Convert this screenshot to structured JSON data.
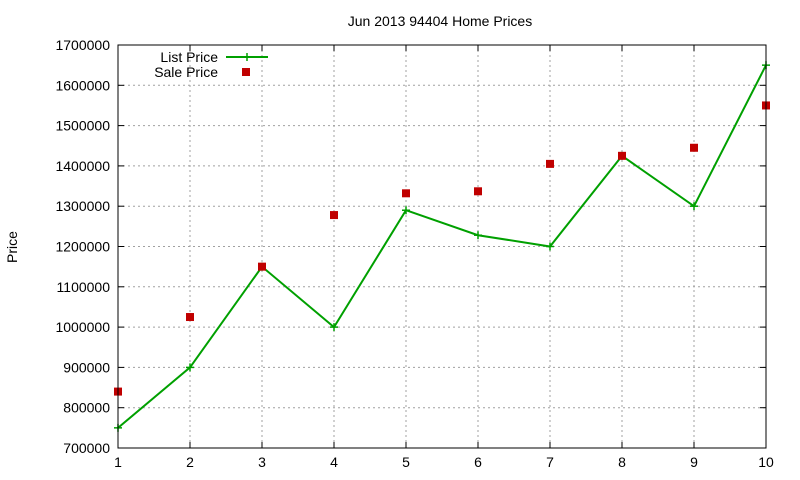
{
  "chart_data": {
    "type": "line",
    "title": "Jun 2013 94404 Home Prices",
    "xlabel": "",
    "ylabel": "Price",
    "xlim": [
      1,
      10
    ],
    "ylim": [
      700000,
      1700000
    ],
    "x_ticks": [
      "1",
      "2",
      "3",
      "4",
      "5",
      "6",
      "7",
      "8",
      "9",
      "10"
    ],
    "y_ticks": [
      "700000",
      "800000",
      "900000",
      "1000000",
      "1100000",
      "1200000",
      "1300000",
      "1400000",
      "1500000",
      "1600000",
      "1700000"
    ],
    "grid": true,
    "legend_position": "top-left",
    "x": [
      1,
      2,
      3,
      4,
      5,
      6,
      7,
      8,
      9,
      10
    ],
    "series": [
      {
        "name": "List Price",
        "style": "line+cross",
        "color": "#00a000",
        "values": [
          750000,
          900000,
          1150000,
          1000000,
          1290000,
          1228000,
          1200000,
          1425000,
          1300000,
          1650000
        ]
      },
      {
        "name": "Sale Price",
        "style": "square-points",
        "color": "#c00000",
        "values": [
          840000,
          1025000,
          1150000,
          1278000,
          1332000,
          1337000,
          1405000,
          1425000,
          1445000,
          1550000
        ]
      }
    ]
  }
}
